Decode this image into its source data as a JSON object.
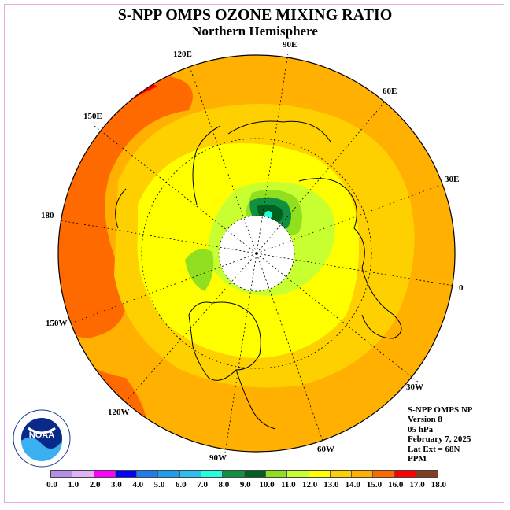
{
  "title": "S-NPP OMPS OZONE MIXING RATIO",
  "subtitle": "Northern Hemisphere",
  "longitude_labels": [
    "0",
    "30E",
    "60E",
    "90E",
    "120E",
    "150E",
    "180",
    "150W",
    "120W",
    "90W",
    "60W",
    "30W"
  ],
  "info": {
    "instrument": "S-NPP OMPS NP",
    "version": "Version 8",
    "pressure": "05 hPa",
    "date": "February 7, 2025",
    "lat_ext": "Lat Ext = 68N",
    "units": "PPM"
  },
  "logo": {
    "label": "NOAA",
    "icon": "noaa-logo"
  },
  "colorbar": {
    "labels": [
      "0.0",
      "1.0",
      "2.0",
      "3.0",
      "4.0",
      "5.0",
      "6.0",
      "7.0",
      "8.0",
      "9.0",
      "10.0",
      "11.0",
      "12.0",
      "13.0",
      "14.0",
      "15.0",
      "16.0",
      "17.0",
      "18.0"
    ],
    "colors": [
      "#b58ee8",
      "#e0b4f4",
      "#ff00ff",
      "#0000ff",
      "#1e7cf0",
      "#1c9ef0",
      "#2cc0f0",
      "#24ffe0",
      "#109040",
      "#006020",
      "#90e020",
      "#c8ff30",
      "#ffff00",
      "#ffd000",
      "#ffb000",
      "#ff6a00",
      "#ff0000",
      "#804020"
    ]
  }
}
